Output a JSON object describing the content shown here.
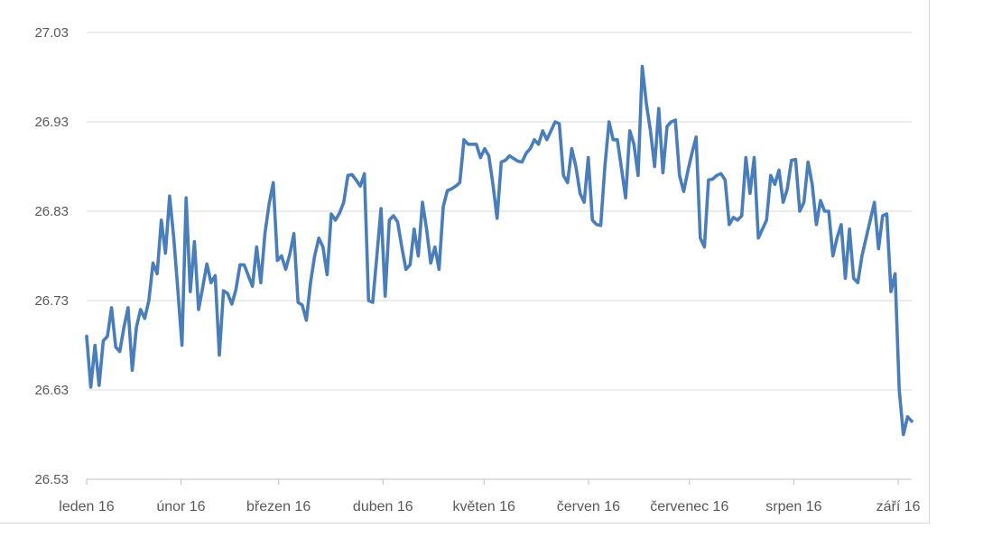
{
  "chart_data": {
    "type": "line",
    "title": "",
    "xlabel": "",
    "ylabel": "",
    "ylim": [
      26.53,
      27.03
    ],
    "yticks": [
      "26.53",
      "26.63",
      "26.73",
      "26.83",
      "26.93",
      "27.03"
    ],
    "xticks": [
      "leden 16",
      "únor 16",
      "březen 16",
      "duben 16",
      "květen 16",
      "červen 16",
      "červenec 16",
      "srpen 16",
      "září 16"
    ],
    "grid": true,
    "legend": "none",
    "line_color": "#4a7ebb",
    "x_start": "2016-01-04",
    "x_end": "2016-09-05",
    "series": [
      {
        "values": [
          26.69,
          26.633,
          26.68,
          26.635,
          26.685,
          26.69,
          26.722,
          26.678,
          26.673,
          26.7,
          26.722,
          26.652,
          26.7,
          26.72,
          26.71,
          26.73,
          26.772,
          26.76,
          26.82,
          26.783,
          26.847,
          26.8,
          26.742,
          26.68,
          26.845,
          26.74,
          26.796,
          26.72,
          26.745,
          26.771,
          26.75,
          26.758,
          26.669,
          26.741,
          26.738,
          26.726,
          26.742,
          26.77,
          26.77,
          26.758,
          26.746,
          26.79,
          26.75,
          26.805,
          26.838,
          26.862,
          26.775,
          26.78,
          26.765,
          26.782,
          26.805,
          26.728,
          26.725,
          26.708,
          26.75,
          26.78,
          26.8,
          26.79,
          26.759,
          26.827,
          26.82,
          26.828,
          26.84,
          26.87,
          26.871,
          26.865,
          26.858,
          26.872,
          26.73,
          26.728,
          26.78,
          26.833,
          26.735,
          26.82,
          26.825,
          26.818,
          26.79,
          26.765,
          26.77,
          26.81,
          26.78,
          26.84,
          26.81,
          26.772,
          26.79,
          26.765,
          26.835,
          26.853,
          26.855,
          26.858,
          26.862,
          26.91,
          26.905,
          26.905,
          26.905,
          26.89,
          26.9,
          26.892,
          26.86,
          26.822,
          26.885,
          26.887,
          26.892,
          26.889,
          26.886,
          26.885,
          26.895,
          26.9,
          26.91,
          26.905,
          26.92,
          26.91,
          26.92,
          26.93,
          26.928,
          26.87,
          26.862,
          26.9,
          26.88,
          26.85,
          26.84,
          26.89,
          26.82,
          26.815,
          26.814,
          26.88,
          26.93,
          26.91,
          26.91,
          26.878,
          26.845,
          26.92,
          26.905,
          26.87,
          26.992,
          26.95,
          26.92,
          26.88,
          26.945,
          26.873,
          26.925,
          26.93,
          26.932,
          26.87,
          26.852,
          26.875,
          26.895,
          26.913,
          26.8,
          26.79,
          26.865,
          26.866,
          26.87,
          26.872,
          26.865,
          26.815,
          26.823,
          26.82,
          26.825,
          26.89,
          26.85,
          26.89,
          26.8,
          26.81,
          26.82,
          26.87,
          26.86,
          26.876,
          26.84,
          26.855,
          26.887,
          26.888,
          26.83,
          26.84,
          26.885,
          26.86,
          26.815,
          26.842,
          26.83,
          26.83,
          26.78,
          26.8,
          26.815,
          26.755,
          26.81,
          26.755,
          26.75,
          26.78,
          26.8,
          26.82,
          26.84,
          26.788,
          26.825,
          26.827,
          26.74,
          26.76,
          26.63,
          26.58,
          26.6,
          26.595
        ]
      }
    ]
  }
}
